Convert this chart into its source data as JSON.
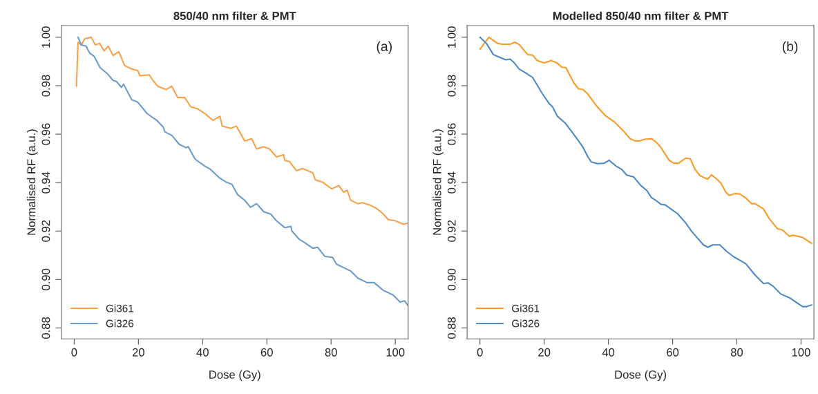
{
  "chart_data": [
    {
      "type": "line",
      "title": "850/40 nm filter & PMT",
      "xlabel": "Dose (Gy)",
      "ylabel": "Normalised RF (a.u.)",
      "annotations": [
        "(a)"
      ],
      "xlim": [
        -4,
        104
      ],
      "ylim": [
        0.8755,
        1.0048
      ],
      "xticks": [
        0,
        20,
        40,
        60,
        80,
        100
      ],
      "yticks": [
        {
          "value": 0.88,
          "label": "0.88"
        },
        {
          "value": 0.9,
          "label": "0.90"
        },
        {
          "value": 0.92,
          "label": "0.92"
        },
        {
          "value": 0.94,
          "label": "0.94"
        },
        {
          "value": 0.96,
          "label": "0.96"
        },
        {
          "value": 0.98,
          "label": "0.98"
        },
        {
          "value": 1.0,
          "label": "1.00"
        }
      ],
      "legend": "bottom left",
      "grid": false,
      "series": [
        {
          "name": "Gi361",
          "color": "#f7a24a",
          "x": [
            0.7,
            1.2,
            2.2,
            3.3,
            5.3,
            6.6,
            7.9,
            9.3,
            10.6,
            12.1,
            13.9,
            15.7,
            17.9,
            19.8,
            20.5,
            23.4,
            24.5,
            26,
            28.6,
            30.4,
            32.2,
            34.4,
            36.3,
            38.5,
            40.7,
            43.2,
            45.4,
            46.1,
            48.8,
            50.5,
            53.1,
            55.3,
            56.8,
            59,
            60.8,
            63,
            65.2,
            65.6,
            67,
            69.2,
            71.1,
            74.3,
            75.1,
            77.3,
            80.2,
            82.4,
            83.9,
            85,
            86.1,
            88.3,
            89.8,
            92,
            94.1,
            96.3,
            97.8,
            100,
            102.6,
            103.7
          ],
          "values": [
            0.9798,
            0.9979,
            0.9968,
            0.9994,
            1.0,
            0.9968,
            0.9975,
            0.9944,
            0.9963,
            0.9925,
            0.994,
            0.9883,
            0.9869,
            0.9862,
            0.9841,
            0.9845,
            0.9822,
            0.9798,
            0.9784,
            0.9798,
            0.9751,
            0.9751,
            0.9713,
            0.9704,
            0.9685,
            0.9657,
            0.9674,
            0.9633,
            0.9624,
            0.9633,
            0.9572,
            0.9581,
            0.9539,
            0.9548,
            0.9539,
            0.9506,
            0.9515,
            0.9491,
            0.9487,
            0.9449,
            0.9458,
            0.944,
            0.9411,
            0.9402,
            0.9374,
            0.9388,
            0.936,
            0.9369,
            0.9327,
            0.9313,
            0.9317,
            0.9308,
            0.9294,
            0.927,
            0.9247,
            0.9242,
            0.9228,
            0.9232
          ]
        },
        {
          "name": "Gi326",
          "color": "#6b9bc9",
          "x": [
            1.2,
            2.2,
            3.7,
            4.8,
            6.2,
            8.1,
            10.3,
            12.1,
            13.2,
            14.7,
            15.4,
            17.9,
            19.8,
            22.7,
            25.7,
            27.8,
            28.2,
            30.4,
            32.7,
            34.8,
            35.5,
            37.7,
            40.7,
            42.5,
            45.1,
            47.3,
            49.1,
            50.9,
            53.1,
            54.9,
            56.8,
            59,
            61.2,
            63,
            65.6,
            67.5,
            67.8,
            70,
            71.8,
            74.3,
            75.8,
            78,
            80.5,
            81.7,
            83.9,
            86.1,
            88.3,
            91.2,
            93.4,
            96.3,
            99.3,
            101.5,
            102.9,
            103.9
          ],
          "values": [
            1.0,
            0.9968,
            0.9963,
            0.9935,
            0.9921,
            0.9874,
            0.985,
            0.9822,
            0.9817,
            0.9793,
            0.9806,
            0.9742,
            0.9732,
            0.9685,
            0.9657,
            0.9628,
            0.961,
            0.9595,
            0.9558,
            0.9544,
            0.9548,
            0.9496,
            0.9468,
            0.9454,
            0.9421,
            0.9402,
            0.9393,
            0.935,
            0.9327,
            0.9298,
            0.9313,
            0.928,
            0.927,
            0.9242,
            0.9214,
            0.9219,
            0.92,
            0.9167,
            0.9152,
            0.9129,
            0.9133,
            0.9096,
            0.9091,
            0.9063,
            0.9049,
            0.9035,
            0.9006,
            0.8987,
            0.8987,
            0.8955,
            0.8936,
            0.8907,
            0.8912,
            0.8893
          ]
        }
      ]
    },
    {
      "type": "line",
      "title": "Modelled 850/40 nm filter & PMT",
      "xlabel": "Dose (Gy)",
      "ylabel": "Normalised RF (a.u.)",
      "annotations": [
        "(b)"
      ],
      "xlim": [
        -4,
        104
      ],
      "ylim": [
        0.8755,
        1.0048
      ],
      "xticks": [
        0,
        20,
        40,
        60,
        80,
        100
      ],
      "yticks": [
        {
          "value": 0.88,
          "label": "0.88"
        },
        {
          "value": 0.9,
          "label": "0.90"
        },
        {
          "value": 0.92,
          "label": "0.92"
        },
        {
          "value": 0.94,
          "label": "0.94"
        },
        {
          "value": 0.96,
          "label": "0.96"
        },
        {
          "value": 0.98,
          "label": "0.98"
        },
        {
          "value": 1.0,
          "label": "1.00"
        }
      ],
      "legend": "bottom left",
      "grid": false,
      "series": [
        {
          "name": "Gi361",
          "color": "#fb9a27",
          "x": [
            0,
            2.8,
            5.4,
            6.8,
            9.4,
            10.9,
            12.2,
            14.9,
            16.4,
            17.8,
            20,
            22.2,
            24.1,
            25.5,
            26.8,
            29.2,
            30.7,
            32.1,
            33.6,
            36.2,
            39.1,
            41.7,
            44.6,
            46.8,
            48.3,
            49.7,
            51.2,
            53.4,
            54.9,
            56.4,
            58.9,
            60.4,
            61.8,
            64.1,
            65.5,
            67,
            68.5,
            70.9,
            72.1,
            73.6,
            75.1,
            76.5,
            77.6,
            79.5,
            80.9,
            82.8,
            84.6,
            85.7,
            88.3,
            90.1,
            92.7,
            94.2,
            96.4,
            97.4,
            100.4,
            103.3
          ],
          "values": [
            0.9951,
            1.0,
            0.9975,
            0.9971,
            0.9971,
            0.9979,
            0.997,
            0.9928,
            0.9926,
            0.9904,
            0.9894,
            0.9904,
            0.9893,
            0.9876,
            0.9874,
            0.9812,
            0.9787,
            0.9784,
            0.9765,
            0.9718,
            0.9676,
            0.9652,
            0.9614,
            0.9581,
            0.9572,
            0.9572,
            0.9579,
            0.9581,
            0.9567,
            0.9544,
            0.9492,
            0.948,
            0.948,
            0.9501,
            0.9498,
            0.9454,
            0.9429,
            0.9414,
            0.9432,
            0.9416,
            0.9397,
            0.9362,
            0.9347,
            0.9355,
            0.9353,
            0.9336,
            0.9313,
            0.9313,
            0.9291,
            0.9251,
            0.9209,
            0.9204,
            0.9178,
            0.9183,
            0.9174,
            0.9149
          ]
        },
        {
          "name": "Gi326",
          "color": "#4d89c2",
          "x": [
            0,
            2.1,
            4.2,
            5.8,
            8,
            9.4,
            10.5,
            12.2,
            14.2,
            16.4,
            19.3,
            21.5,
            22.6,
            24.1,
            26.6,
            28.9,
            30.7,
            32,
            33.6,
            34.7,
            36.5,
            38.7,
            40.2,
            42.4,
            44.2,
            45.7,
            47.9,
            50.1,
            52,
            53.4,
            54.5,
            56.4,
            57.7,
            59.7,
            61.5,
            64.1,
            65.9,
            69.6,
            71,
            72.5,
            74.7,
            76.9,
            79.1,
            80.9,
            82.8,
            85.7,
            88.3,
            89.7,
            91.2,
            93.7,
            96.6,
            98.9,
            100.5,
            101.8,
            103.3
          ],
          "values": [
            1.0,
            0.9973,
            0.9928,
            0.9919,
            0.9907,
            0.991,
            0.9897,
            0.9869,
            0.9853,
            0.9834,
            0.977,
            0.9727,
            0.9713,
            0.9674,
            0.9645,
            0.9605,
            0.9572,
            0.9548,
            0.9506,
            0.9485,
            0.9478,
            0.948,
            0.9492,
            0.9468,
            0.9454,
            0.9431,
            0.9423,
            0.9388,
            0.9367,
            0.9338,
            0.9329,
            0.931,
            0.9308,
            0.9289,
            0.9272,
            0.9233,
            0.9199,
            0.9143,
            0.9133,
            0.9143,
            0.9143,
            0.9115,
            0.9093,
            0.908,
            0.9065,
            0.9018,
            0.8983,
            0.8986,
            0.8973,
            0.894,
            0.8923,
            0.8902,
            0.8888,
            0.8888,
            0.8895
          ]
        }
      ]
    }
  ]
}
